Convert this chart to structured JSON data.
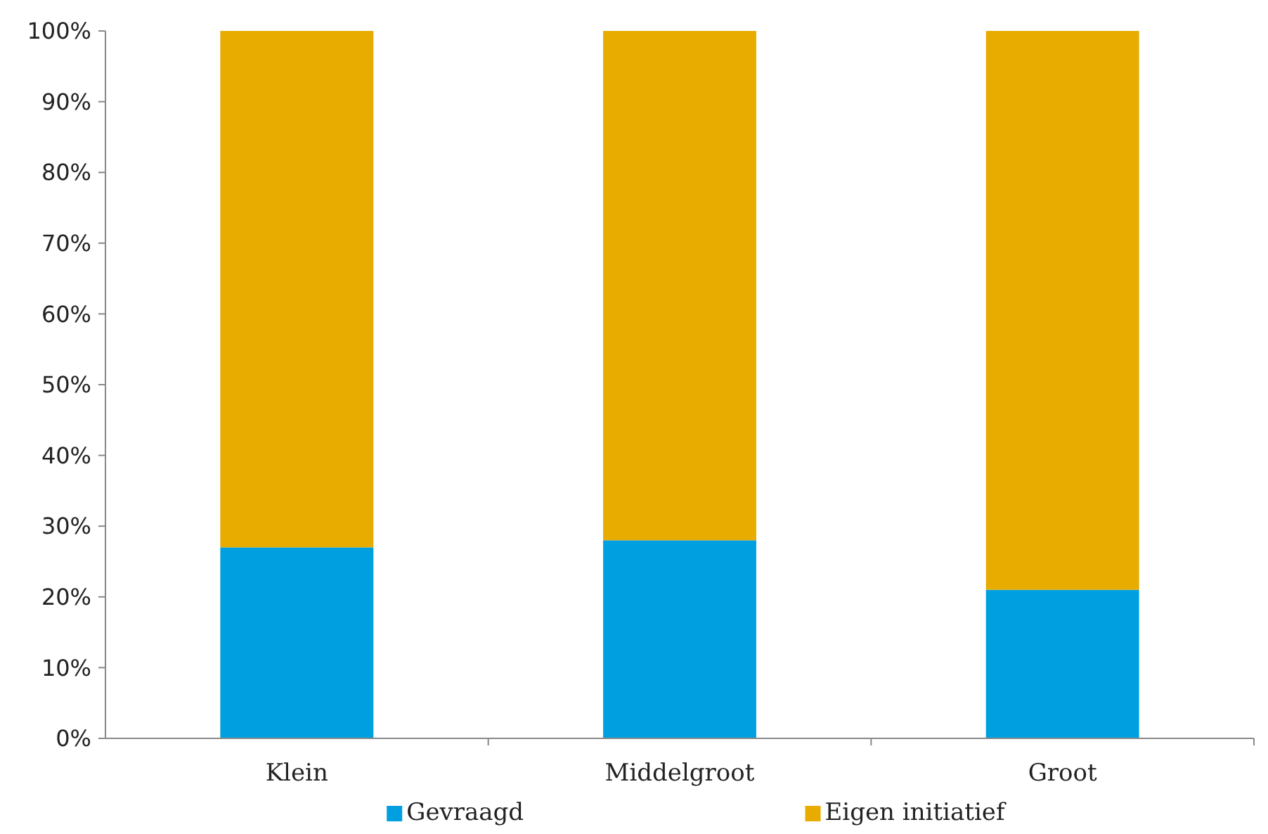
{
  "chart_data": {
    "type": "bar",
    "stacked": true,
    "categories": [
      "Klein",
      "Middelgroot",
      "Groot"
    ],
    "series": [
      {
        "name": "Gevraagd",
        "color": "#009fe0",
        "values": [
          27,
          28,
          21
        ]
      },
      {
        "name": "Eigen initiatief",
        "color": "#e8ab00",
        "values": [
          73,
          72,
          79
        ]
      }
    ],
    "ylim": [
      0,
      100
    ],
    "yticks": [
      {
        "value": 0,
        "label": "0%"
      },
      {
        "value": 10,
        "label": "10%"
      },
      {
        "value": 20,
        "label": "20%"
      },
      {
        "value": 30,
        "label": "30%"
      },
      {
        "value": 40,
        "label": "40%"
      },
      {
        "value": 50,
        "label": "50%"
      },
      {
        "value": 60,
        "label": "60%"
      },
      {
        "value": 70,
        "label": "70%"
      },
      {
        "value": 80,
        "label": "80%"
      },
      {
        "value": 90,
        "label": "90%"
      },
      {
        "value": 100,
        "label": "100%"
      }
    ],
    "grid": false,
    "legend": "bottom"
  }
}
